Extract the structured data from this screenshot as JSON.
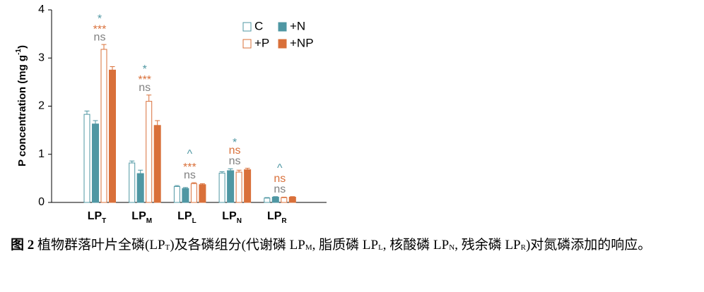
{
  "chart_data": {
    "type": "bar",
    "y_label": {
      "text": "P concentration (mg g",
      "sup": "-1",
      "end": ")"
    },
    "categories": [
      {
        "text": "LP",
        "sub": "T"
      },
      {
        "text": "LP",
        "sub": "M"
      },
      {
        "text": "LP",
        "sub": "L"
      },
      {
        "text": "LP",
        "sub": "N"
      },
      {
        "text": "LP",
        "sub": "R"
      }
    ],
    "series": [
      {
        "name": "C",
        "color": "#4f97a3",
        "style": "open",
        "values": [
          1.83,
          0.82,
          0.33,
          0.61,
          0.09
        ],
        "errors": [
          0.07,
          0.04,
          0.02,
          0.03,
          0.01
        ]
      },
      {
        "name": "+N",
        "color": "#4f97a3",
        "style": "filled",
        "values": [
          1.63,
          0.6,
          0.29,
          0.66,
          0.11
        ],
        "errors": [
          0.07,
          0.07,
          0.02,
          0.04,
          0.01
        ]
      },
      {
        "name": "+P",
        "color": "#d9703a",
        "style": "open",
        "values": [
          3.18,
          2.1,
          0.39,
          0.63,
          0.1
        ],
        "errors": [
          0.1,
          0.13,
          0.02,
          0.04,
          0.01
        ]
      },
      {
        "name": "+NP",
        "color": "#d9703a",
        "style": "filled",
        "values": [
          2.75,
          1.6,
          0.37,
          0.68,
          0.11
        ],
        "errors": [
          0.07,
          0.1,
          0.02,
          0.03,
          0.01
        ]
      }
    ],
    "annotations": [
      {
        "category": 0,
        "lines": [
          {
            "text": "ns",
            "color": "#808080"
          },
          {
            "text": "***",
            "color": "#d9703a"
          },
          {
            "text": "*",
            "color": "#4f97a3"
          }
        ]
      },
      {
        "category": 1,
        "lines": [
          {
            "text": "ns",
            "color": "#808080"
          },
          {
            "text": "***",
            "color": "#d9703a"
          },
          {
            "text": "*",
            "color": "#4f97a3"
          }
        ]
      },
      {
        "category": 2,
        "lines": [
          {
            "text": "ns",
            "color": "#808080"
          },
          {
            "text": "***",
            "color": "#d9703a"
          },
          {
            "text": "^",
            "color": "#4f97a3"
          }
        ]
      },
      {
        "category": 3,
        "lines": [
          {
            "text": "ns",
            "color": "#808080"
          },
          {
            "text": "ns",
            "color": "#d9703a"
          },
          {
            "text": "*",
            "color": "#4f97a3"
          }
        ]
      },
      {
        "category": 4,
        "lines": [
          {
            "text": "ns",
            "color": "#808080"
          },
          {
            "text": "ns",
            "color": "#d9703a"
          },
          {
            "text": "^",
            "color": "#4f97a3"
          }
        ]
      }
    ],
    "ylim": [
      0,
      4
    ],
    "yticks": [
      0,
      1,
      2,
      3,
      4
    ]
  },
  "caption": [
    {
      "text": "图 2",
      "style": "bold"
    },
    {
      "text": " 植物群落叶片全磷(LP",
      "style": "normal"
    },
    {
      "text": "T",
      "style": "sub"
    },
    {
      "text": ")及各磷组分(代谢磷 LP",
      "style": "normal"
    },
    {
      "text": "M",
      "style": "sub"
    },
    {
      "text": ", 脂质磷 LP",
      "style": "normal"
    },
    {
      "text": "L",
      "style": "sub"
    },
    {
      "text": ", 核酸磷 LP",
      "style": "normal"
    },
    {
      "text": "N",
      "style": "sub"
    },
    {
      "text": ", 残余磷 LP",
      "style": "normal"
    },
    {
      "text": "R",
      "style": "sub"
    },
    {
      "text": ")对氮磷添加的响应。",
      "style": "normal"
    }
  ]
}
